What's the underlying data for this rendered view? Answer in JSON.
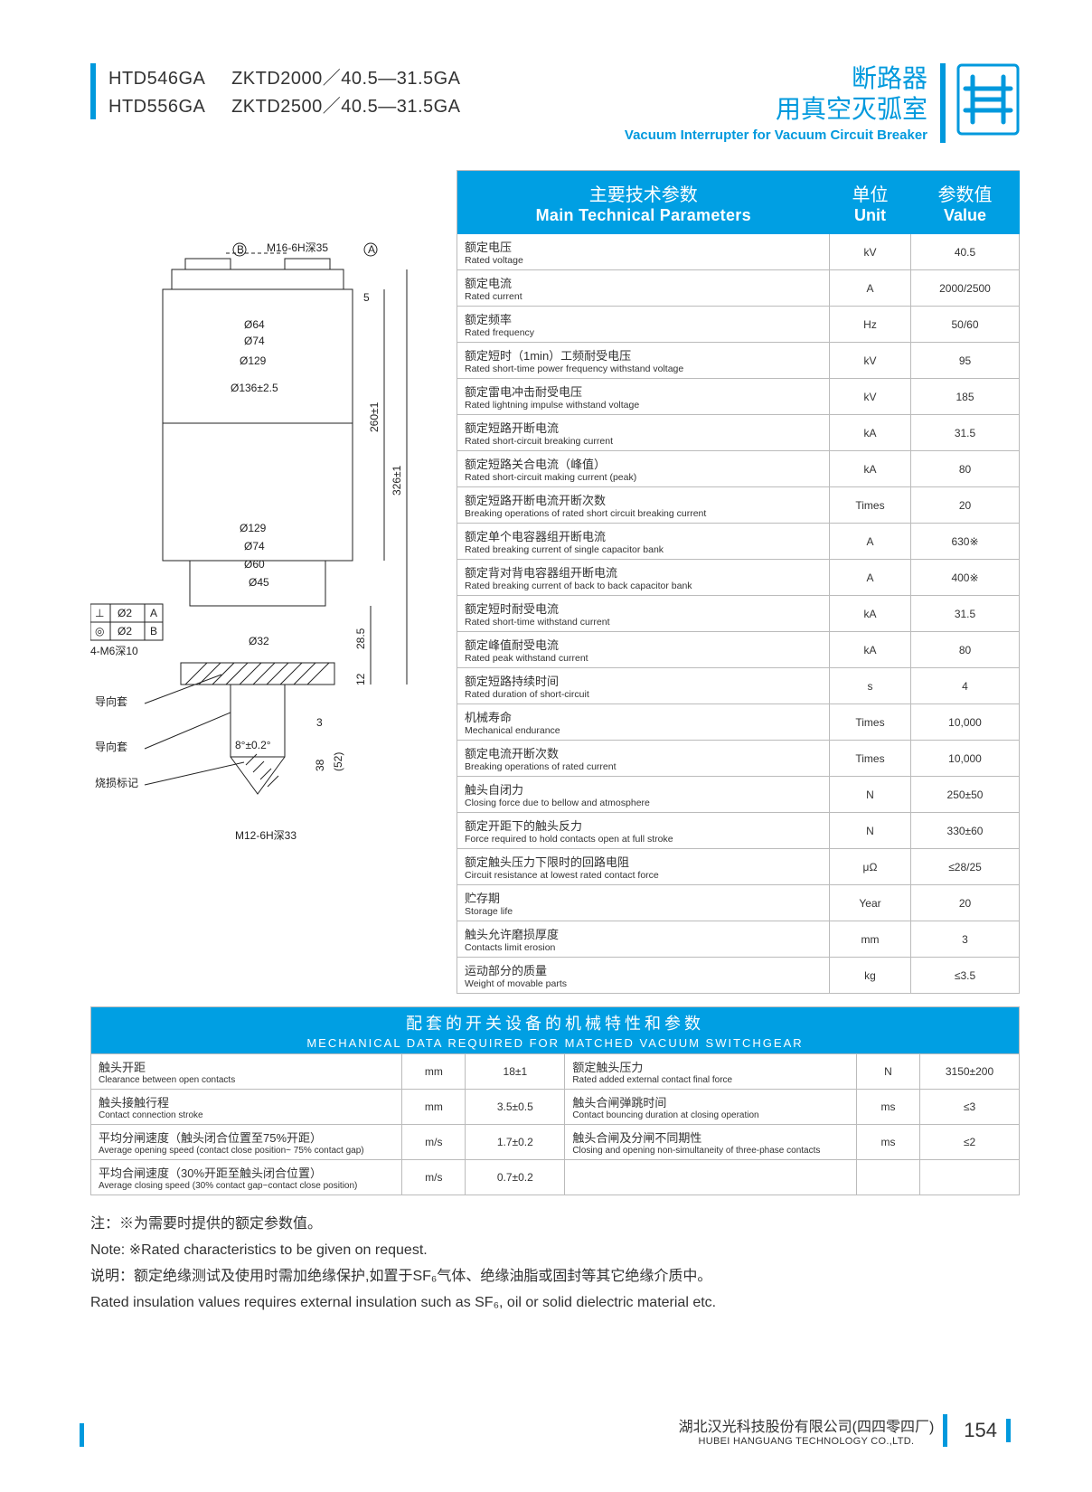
{
  "header": {
    "models": [
      {
        "code": "HTD546GA",
        "spec": "ZKTD2000／40.5—31.5GA"
      },
      {
        "code": "HTD556GA",
        "spec": "ZKTD2500／40.5—31.5GA"
      }
    ],
    "title_cn_l1": "断路器",
    "title_cn_l2": "用真空灭弧室",
    "title_en": "Vacuum Interrupter for Vacuum Circuit Breaker"
  },
  "colors": {
    "brand": "#009fe3",
    "accent": "#0099dd",
    "rule": "#bbbbbb",
    "text": "#333333"
  },
  "diagram": {
    "labels": {
      "top_thread": "M16-6H深35",
      "b_mark": "B",
      "a_mark": "A",
      "d64": "Ø64",
      "d74_1": "Ø74",
      "d129_1": "Ø129",
      "d136": "Ø136±2.5",
      "h260": "260±1",
      "h326": "326±1",
      "d129_2": "Ø129",
      "d74_2": "Ø74",
      "d60": "Ø60",
      "d45": "Ø45",
      "perp": "⊥",
      "conc": "◎",
      "t02a": "Ø2",
      "t02b": "Ø2",
      "ta": "A",
      "tb": "B",
      "m6": "4-M6深10",
      "d32": "Ø32",
      "h285": "28.5",
      "h12": "12",
      "angle": "8°±0.2°",
      "h3": "3",
      "h38": "38",
      "h52": "(52)",
      "five": "5",
      "guide1": "导向套",
      "guide2": "导向套",
      "wind": "烧损标记",
      "bot_thread": "M12-6H深33"
    }
  },
  "params": {
    "head": {
      "main_cn": "主要技术参数",
      "main_en": "Main Technical Parameters",
      "unit_cn": "单位",
      "unit_en": "Unit",
      "val_cn": "参数值",
      "val_en": "Value"
    },
    "rows": [
      {
        "cn": "额定电压",
        "en": "Rated voltage",
        "unit": "kV",
        "val": "40.5"
      },
      {
        "cn": "额定电流",
        "en": "Rated current",
        "unit": "A",
        "val": "2000/2500"
      },
      {
        "cn": "额定频率",
        "en": "Rated frequency",
        "unit": "Hz",
        "val": "50/60"
      },
      {
        "cn": "额定短时（1min）工频耐受电压",
        "en": "Rated short-time power frequency withstand voltage",
        "unit": "kV",
        "val": "95"
      },
      {
        "cn": "额定雷电冲击耐受电压",
        "en": "Rated lightning impulse withstand voltage",
        "unit": "kV",
        "val": "185"
      },
      {
        "cn": "额定短路开断电流",
        "en": "Rated short-circuit breaking current",
        "unit": "kA",
        "val": "31.5"
      },
      {
        "cn": "额定短路关合电流（峰值）",
        "en": "Rated short-circuit making current (peak)",
        "unit": "kA",
        "val": "80"
      },
      {
        "cn": "额定短路开断电流开断次数",
        "en": "Breaking operations of rated short circuit breaking current",
        "unit": "Times",
        "val": "20"
      },
      {
        "cn": "额定单个电容器组开断电流",
        "en": "Rated breaking current of single capacitor bank",
        "unit": "A",
        "val": "630※"
      },
      {
        "cn": "额定背对背电容器组开断电流",
        "en": "Rated breaking current of back to back capacitor bank",
        "unit": "A",
        "val": "400※"
      },
      {
        "cn": "额定短时耐受电流",
        "en": "Rated short-time withstand current",
        "unit": "kA",
        "val": "31.5"
      },
      {
        "cn": "额定峰值耐受电流",
        "en": "Rated peak withstand current",
        "unit": "kA",
        "val": "80"
      },
      {
        "cn": "额定短路持续时间",
        "en": "Rated duration of short-circuit",
        "unit": "s",
        "val": "4"
      },
      {
        "cn": "机械寿命",
        "en": "Mechanical endurance",
        "unit": "Times",
        "val": "10,000"
      },
      {
        "cn": "额定电流开断次数",
        "en": "Breaking operations of rated current",
        "unit": "Times",
        "val": "10,000"
      },
      {
        "cn": "触头自闭力",
        "en": "Closing force due to bellow and atmosphere",
        "unit": "N",
        "val": "250±50"
      },
      {
        "cn": "额定开距下的触头反力",
        "en": "Force required to hold contacts open at full stroke",
        "unit": "N",
        "val": "330±60"
      },
      {
        "cn": "额定触头压力下限时的回路电阻",
        "en": "Circuit resistance at lowest rated contact force",
        "unit": "μΩ",
        "val": "≤28/25"
      },
      {
        "cn": "贮存期",
        "en": "Storage life",
        "unit": "Year",
        "val": "20"
      },
      {
        "cn": "触头允许磨损厚度",
        "en": "Contacts limit erosion",
        "unit": "mm",
        "val": "3"
      },
      {
        "cn": "运动部分的质量",
        "en": "Weight of movable parts",
        "unit": "kg",
        "val": "≤3.5"
      }
    ]
  },
  "mech": {
    "title_cn": "配套的开关设备的机械特性和参数",
    "title_en": "MECHANICAL DATA REQUIRED FOR MATCHED VACUUM SWITCHGEAR",
    "rows": [
      {
        "cn": "触头开距",
        "en": "Clearance between open contacts",
        "unit": "mm",
        "val": "18±1",
        "cn2": "额定触头压力",
        "en2": "Rated added external contact final force",
        "unit2": "N",
        "val2": "3150±200"
      },
      {
        "cn": "触头接触行程",
        "en": "Contact connection stroke",
        "unit": "mm",
        "val": "3.5±0.5",
        "cn2": "触头合闸弹跳时间",
        "en2": "Contact bouncing duration at closing operation",
        "unit2": "ms",
        "val2": "≤3"
      },
      {
        "cn": "平均分闸速度（触头闭合位置至75%开距）",
        "en": "Average opening speed (contact close position~ 75% contact gap)",
        "unit": "m/s",
        "val": "1.7±0.2",
        "cn2": "触头合闸及分闸不同期性",
        "en2": "Closing and opening non-simultaneity of three-phase contacts",
        "unit2": "ms",
        "val2": "≤2"
      },
      {
        "cn": "平均合闸速度（30%开距至触头闭合位置）",
        "en": "Average closing speed (30% contact gap~contact close position)",
        "unit": "m/s",
        "val": "0.7±0.2",
        "cn2": "",
        "en2": "",
        "unit2": "",
        "val2": ""
      }
    ]
  },
  "notes": {
    "l1": "注：※为需要时提供的额定参数值。",
    "l2": "Note: ※Rated characteristics to be given on request.",
    "l3": "说明：额定绝缘测试及使用时需加绝缘保护,如置于SF₆气体、绝缘油脂或固封等其它绝缘介质中。",
    "l4": "Rated insulation values requires external insulation such as SF₆, oil or solid dielectric material etc."
  },
  "footer": {
    "company_cn": "湖北汉光科技股份有限公司(四四零四厂)",
    "company_en": "HUBEI HANGUANG TECHNOLOGY CO.,LTD.",
    "page": "154"
  }
}
